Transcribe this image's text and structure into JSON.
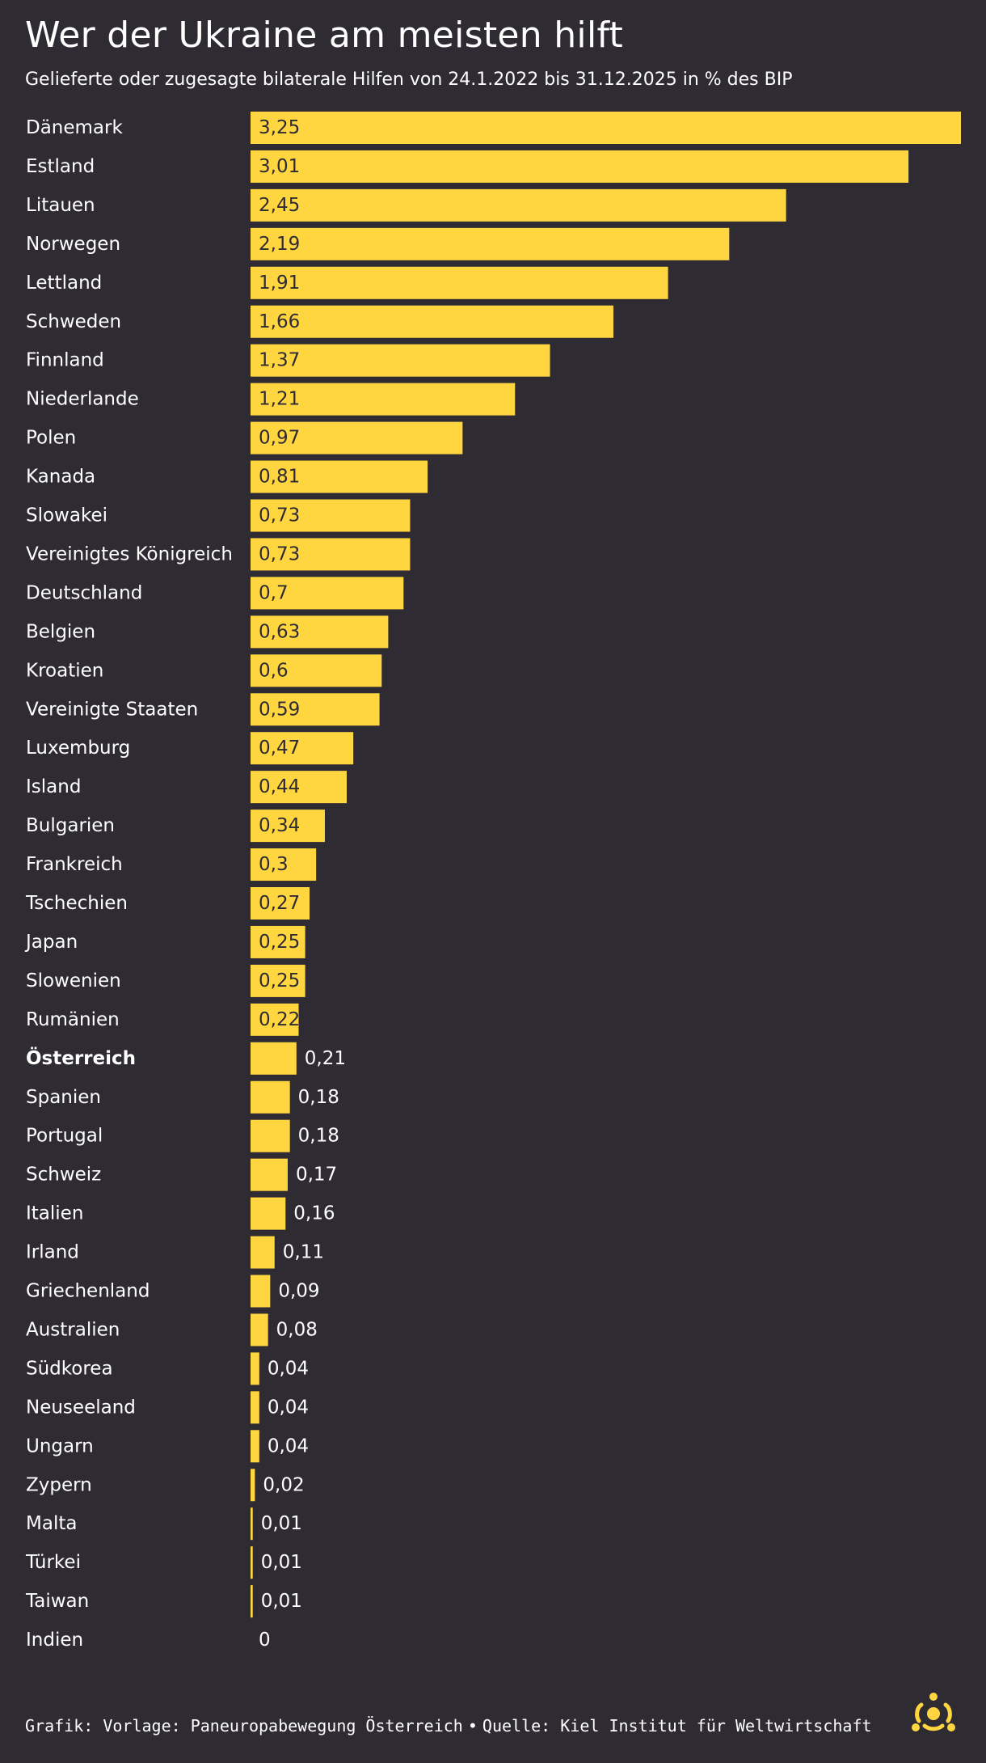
{
  "header": {
    "title": "Wer der Ukraine am meisten hilft",
    "subtitle": "Gelieferte oder zugesagte bilaterale Hilfen von 24.1.2022 bis 31.12.2025 in % des BIP"
  },
  "footer": {
    "grafik": "Grafik: Vorlage: Paneuropabewegung Österreich",
    "separator": "•",
    "quelle": "Quelle: Kiel Institut für Weltwirtschaft"
  },
  "colors": {
    "background": "#2f2b33",
    "bar": "#ffd640",
    "text": "#ffffff",
    "bar_label_inside": "#2f2b33"
  },
  "icons": {
    "logo": "logo-icon"
  },
  "chart_data": {
    "type": "bar",
    "orientation": "horizontal",
    "title": "Wer der Ukraine am meisten hilft",
    "subtitle": "Gelieferte oder zugesagte bilaterale Hilfen von 24.1.2022 bis 31.12.2025 in % des BIP",
    "xlabel": "",
    "ylabel": "",
    "xlim": [
      0,
      3.25
    ],
    "grid": false,
    "legend": "none",
    "highlight": "Österreich",
    "categories": [
      "Dänemark",
      "Estland",
      "Litauen",
      "Norwegen",
      "Lettland",
      "Schweden",
      "Finnland",
      "Niederlande",
      "Polen",
      "Kanada",
      "Slowakei",
      "Vereinigtes Königreich",
      "Deutschland",
      "Belgien",
      "Kroatien",
      "Vereinigte Staaten",
      "Luxemburg",
      "Island",
      "Bulgarien",
      "Frankreich",
      "Tschechien",
      "Japan",
      "Slowenien",
      "Rumänien",
      "Österreich",
      "Spanien",
      "Portugal",
      "Schweiz",
      "Italien",
      "Irland",
      "Griechenland",
      "Australien",
      "Südkorea",
      "Neuseeland",
      "Ungarn",
      "Zypern",
      "Malta",
      "Türkei",
      "Taiwan",
      "Indien"
    ],
    "values": [
      3.25,
      3.01,
      2.45,
      2.19,
      1.91,
      1.66,
      1.37,
      1.21,
      0.97,
      0.81,
      0.73,
      0.73,
      0.7,
      0.63,
      0.6,
      0.59,
      0.47,
      0.44,
      0.34,
      0.3,
      0.27,
      0.25,
      0.25,
      0.22,
      0.21,
      0.18,
      0.18,
      0.17,
      0.16,
      0.11,
      0.09,
      0.08,
      0.04,
      0.04,
      0.04,
      0.02,
      0.01,
      0.01,
      0.01,
      0
    ],
    "value_labels": [
      "3,25",
      "3,01",
      "2,45",
      "2,19",
      "1,91",
      "1,66",
      "1,37",
      "1,21",
      "0,97",
      "0,81",
      "0,73",
      "0,73",
      "0,7",
      "0,63",
      "0,6",
      "0,59",
      "0,47",
      "0,44",
      "0,34",
      "0,3",
      "0,27",
      "0,25",
      "0,25",
      "0,22",
      "0,21",
      "0,18",
      "0,18",
      "0,17",
      "0,16",
      "0,11",
      "0,09",
      "0,08",
      "0,04",
      "0,04",
      "0,04",
      "0,02",
      "0,01",
      "0,01",
      "0,01",
      "0"
    ]
  }
}
